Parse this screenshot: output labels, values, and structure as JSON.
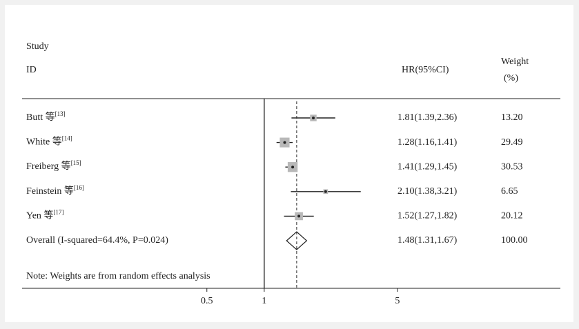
{
  "chart_data": {
    "type": "forest",
    "headers": {
      "study": "Study",
      "id": "ID",
      "hr": "HR(95%CI)",
      "weight": "Weight",
      "weight_unit": "(%)"
    },
    "names": [
      "Butt 等",
      "White 等",
      "Freiberg 等",
      "Feinstein 等",
      "Yen 等"
    ],
    "refs": [
      "[13]",
      "[14]",
      "[15]",
      "[16]",
      "[17]"
    ],
    "hr": [
      1.81,
      1.28,
      1.41,
      2.1,
      1.52
    ],
    "lower": [
      1.39,
      1.16,
      1.29,
      1.38,
      1.27
    ],
    "upper": [
      2.36,
      1.41,
      1.45,
      3.21,
      1.82
    ],
    "hr_labels": [
      "1.81(1.39,2.36)",
      "1.28(1.16,1.41)",
      "1.41(1.29,1.45)",
      "2.10(1.38,3.21)",
      "1.52(1.27,1.82)"
    ],
    "weights": [
      13.2,
      29.49,
      30.53,
      6.65,
      20.12
    ],
    "weight_labels": [
      "13.20",
      "29.49",
      "30.53",
      "6.65",
      "20.12"
    ],
    "overall": {
      "label": "Overall (I-squared=64.4%, P=0.024)",
      "hr": 1.48,
      "lower": 1.31,
      "upper": 1.67,
      "hr_label": "1.48(1.31,1.67)",
      "weight": 100,
      "weight_label": "100.00"
    },
    "note": "Note: Weights are from random effects analysis",
    "x_scale": "log",
    "xlim": [
      0.35,
      10
    ],
    "xticks": [
      0.5,
      1,
      5
    ],
    "reference_line": 1,
    "color": "#222222",
    "square_color": "#b8b8b8"
  }
}
